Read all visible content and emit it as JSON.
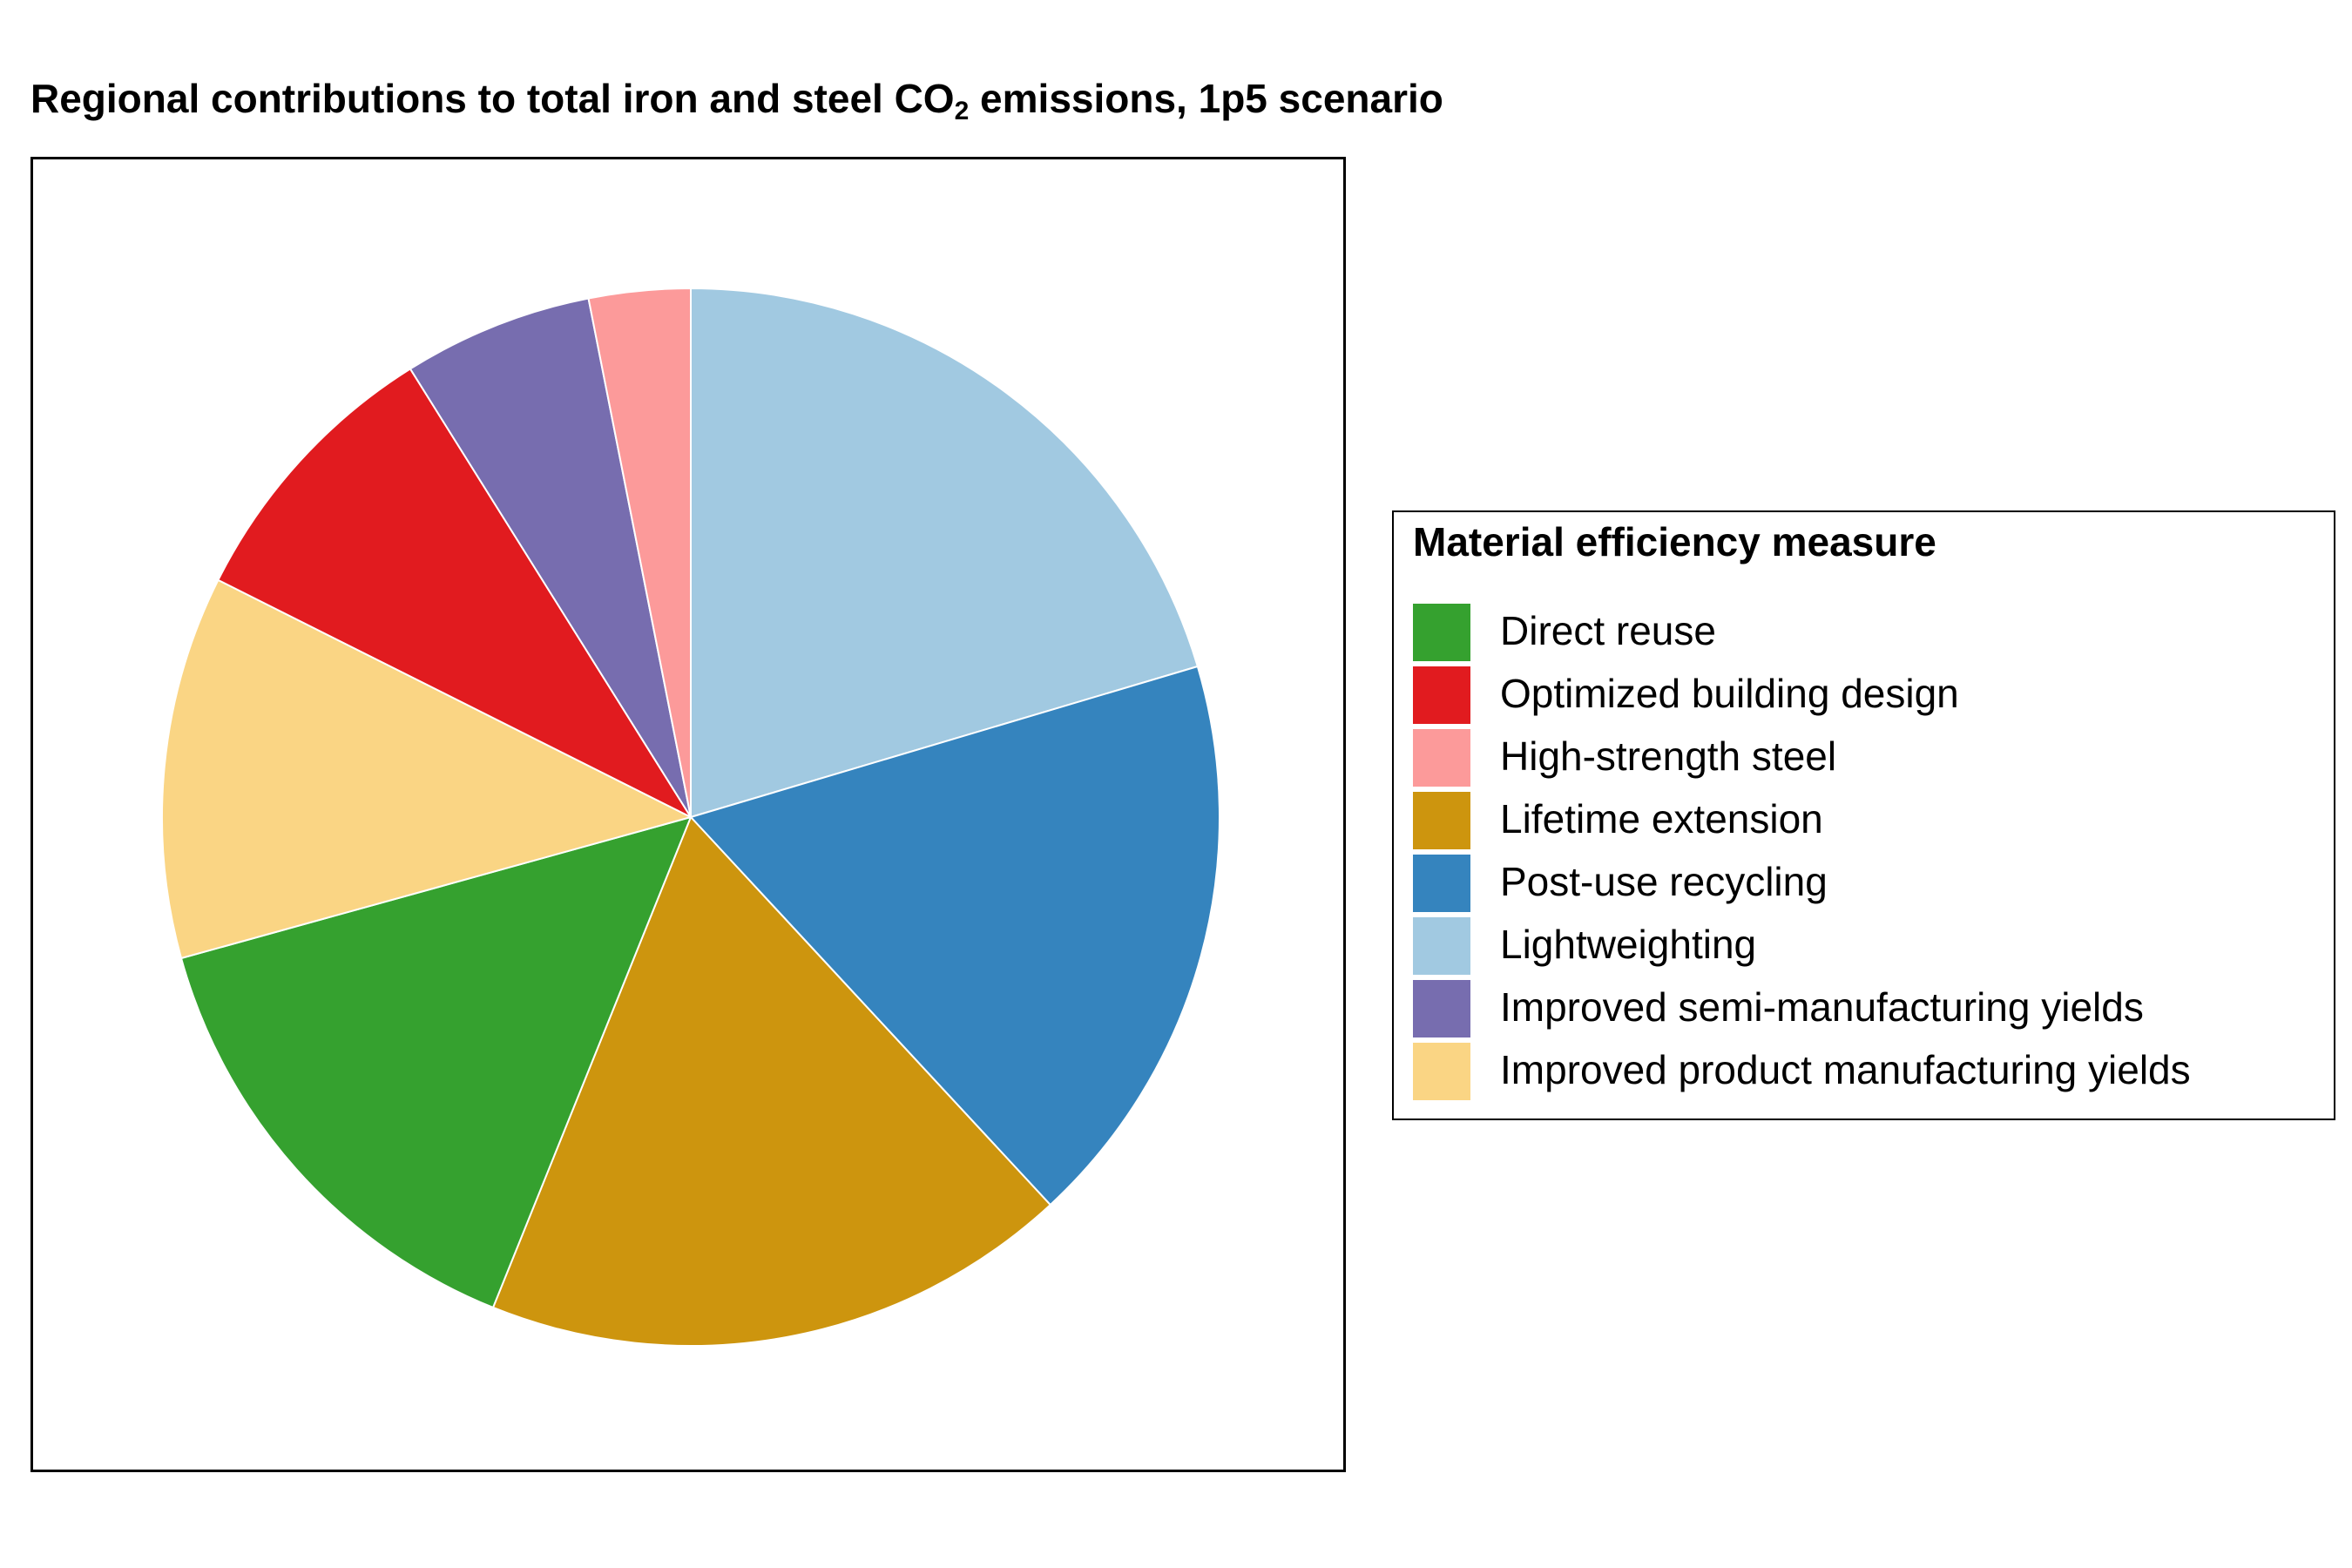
{
  "chart_data": {
    "type": "pie",
    "title_main": "Regional contributions to total iron and steel CO",
    "title_sub": "2",
    "title_tail": " emissions, 1p5 scenario",
    "legend": {
      "title": "Material efficiency measure",
      "placement": "right"
    },
    "start": "12 o'clock",
    "direction": "clockwise",
    "slices": [
      {
        "name": "Lightweighting",
        "value": 20.4,
        "color": "#a1c9e1"
      },
      {
        "name": "Post-use recycling",
        "value": 17.7,
        "color": "#3584be"
      },
      {
        "name": "Lifetime extension",
        "value": 18.0,
        "color": "#cd950e"
      },
      {
        "name": "Direct reuse",
        "value": 14.6,
        "color": "#35a12f"
      },
      {
        "name": "Improved product manufacturing yields",
        "value": 11.7,
        "color": "#fad584"
      },
      {
        "name": "Optimized building design",
        "value": 8.7,
        "color": "#e11b1f"
      },
      {
        "name": "Improved semi-manufacturing yields",
        "value": 5.8,
        "color": "#776daf"
      },
      {
        "name": "High-strength steel",
        "value": 3.1,
        "color": "#fc9a9a"
      }
    ],
    "legend_order": [
      "Direct reuse",
      "Optimized building design",
      "High-strength steel",
      "Lifetime extension",
      "Post-use recycling",
      "Lightweighting",
      "Improved semi-manufacturing yields",
      "Improved product manufacturing yields"
    ]
  }
}
